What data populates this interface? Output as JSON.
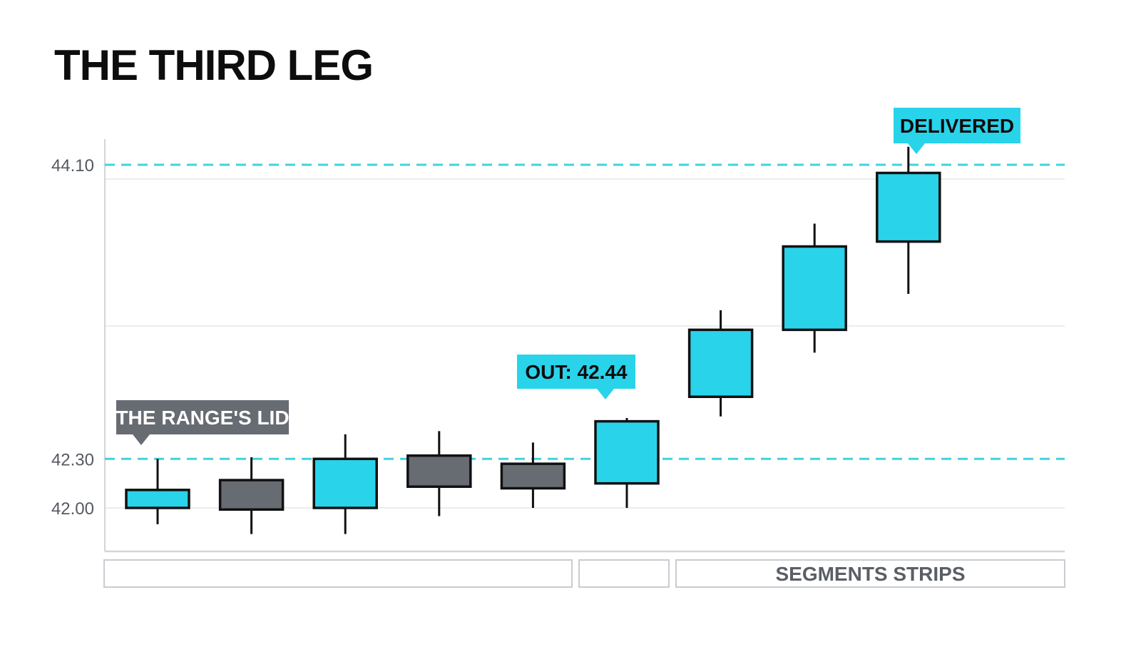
{
  "title": "THE THIRD LEG",
  "colors": {
    "bullish": "#29d3ea",
    "bearish": "#676b72",
    "level_line": "#3fd3e0",
    "grid": "#e3e5e8",
    "axis": "#d2d5d9",
    "callout_dark": "#676b72",
    "callout_cyan": "#29d3ea",
    "outline": "#111111"
  },
  "chart_data": {
    "type": "candlestick",
    "title": "THE THIRD LEG",
    "yticks": [
      "42.00",
      "42.30",
      "44.10"
    ],
    "ylim": [
      41.77,
      44.23
    ],
    "grid": true,
    "candles": [
      {
        "open": 42.0,
        "high": 42.3,
        "low": 41.9,
        "close": 42.11,
        "color": "bullish"
      },
      {
        "open": 42.17,
        "high": 42.31,
        "low": 41.84,
        "close": 41.99,
        "color": "bearish"
      },
      {
        "open": 42.0,
        "high": 42.45,
        "low": 41.84,
        "close": 42.3,
        "color": "bullish"
      },
      {
        "open": 42.32,
        "high": 42.47,
        "low": 41.95,
        "close": 42.13,
        "color": "bearish"
      },
      {
        "open": 42.27,
        "high": 42.4,
        "low": 42.0,
        "close": 42.12,
        "color": "bearish"
      },
      {
        "open": 42.15,
        "high": 42.55,
        "low": 42.0,
        "close": 42.53,
        "color": "bullish"
      },
      {
        "open": 42.68,
        "high": 43.21,
        "low": 42.56,
        "close": 43.09,
        "color": "bullish"
      },
      {
        "open": 43.09,
        "high": 43.74,
        "low": 42.95,
        "close": 43.6,
        "color": "bullish"
      },
      {
        "open": 43.63,
        "high": 44.21,
        "low": 43.31,
        "close": 44.05,
        "color": "bullish"
      }
    ],
    "levels": [
      {
        "value": 42.3,
        "label": "42.30"
      },
      {
        "value": 44.1,
        "label": "44.10"
      }
    ],
    "annotations": [
      {
        "text": "THE RANGE'S LID",
        "candle": 0,
        "style": "dark"
      },
      {
        "text": "OUT: 42.44",
        "candle": 5,
        "style": "cyan"
      },
      {
        "text": "DELIVERED",
        "candle": 8,
        "style": "cyan"
      }
    ],
    "segments": [
      {
        "label": "",
        "from": 0,
        "to": 4
      },
      {
        "label": "",
        "from": 5,
        "to": 5
      },
      {
        "label": "SEGMENTS STRIPS",
        "from": 6,
        "to": 8
      }
    ]
  }
}
